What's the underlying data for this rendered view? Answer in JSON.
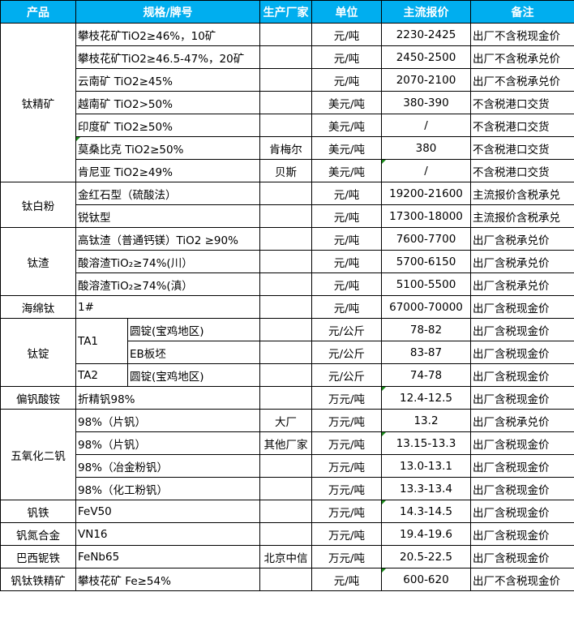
{
  "header": {
    "product": "产品",
    "spec": "规格/牌号",
    "producer": "生产厂家",
    "unit": "单位",
    "price": "主流报价",
    "note": "备注"
  },
  "colors": {
    "header_bg": "#00aeef",
    "header_text": "#ffffff",
    "comment_marker": "#1a8a1a"
  },
  "groups": [
    {
      "product": "钛精矿",
      "rows": [
        {
          "spec": "攀枝花矿TiO2≥46%，10矿",
          "producer": "",
          "unit": "元/吨",
          "price": "2230-2425",
          "note": "出厂不含税现金价"
        },
        {
          "spec": "攀枝花矿TiO2≥46.5-47%，20矿",
          "producer": "",
          "unit": "元/吨",
          "price": "2450-2500",
          "note": "出厂不含税承兑价"
        },
        {
          "spec": "云南矿 TiO2≥45%",
          "producer": "",
          "unit": "元/吨",
          "price": "2070-2100",
          "note": "出厂不含税承兑价"
        },
        {
          "spec": "越南矿 TiO2>50%",
          "producer": "",
          "unit": "美元/吨",
          "price": "380-390",
          "note": "不含税港口交货"
        },
        {
          "spec": "印度矿 TiO2≥50%",
          "producer": "",
          "unit": "美元/吨",
          "price": "/",
          "note": "不含税港口交货"
        },
        {
          "spec": "莫桑比克 TiO2≥50%",
          "producer": "肯梅尔",
          "unit": "美元/吨",
          "price": "380",
          "note": "不含税港口交货"
        },
        {
          "spec": "肯尼亚 TiO2≥49%",
          "producer": "贝斯",
          "unit": "美元/吨",
          "price": "/",
          "note": "不含税港口交货"
        }
      ]
    },
    {
      "product": "钛白粉",
      "rows": [
        {
          "spec": "金红石型（硫酸法）",
          "producer": "",
          "unit": "元/吨",
          "price": "19200-21600",
          "note": "主流报价含税承兑"
        },
        {
          "spec": "锐钛型",
          "producer": "",
          "unit": "元/吨",
          "price": "17300-18000",
          "note": "主流报价含税承兑"
        }
      ]
    },
    {
      "product": "钛渣",
      "rows": [
        {
          "spec": "高钛渣（普通钙镁）TiO2 ≥90%",
          "producer": "",
          "unit": "元/吨",
          "price": "7600-7700",
          "note": "出厂含税承兑价"
        },
        {
          "spec": "酸溶渣TiO₂≥74%(川）",
          "producer": "",
          "unit": "元/吨",
          "price": "5700-6150",
          "note": "出厂含税承兑价"
        },
        {
          "spec": "酸溶渣TiO₂≥74%(滇）",
          "producer": "",
          "unit": "元/吨",
          "price": "5100-5500",
          "note": "出厂含税承兑价"
        }
      ]
    },
    {
      "product": "海绵钛",
      "rows": [
        {
          "spec": "1#",
          "producer": "",
          "unit": "元/吨",
          "price": "67000-70000",
          "note": "出厂含税现金价"
        }
      ]
    },
    {
      "product": "钛锭",
      "rows": [
        {
          "grade": "TA1",
          "spec": "圆锭(宝鸡地区)",
          "producer": "",
          "unit": "元/公斤",
          "price": "78-82",
          "note": "出厂含税现金价"
        },
        {
          "grade": null,
          "spec": "EB板坯",
          "producer": "",
          "unit": "元/公斤",
          "price": "83-87",
          "note": "出厂含税现金价"
        },
        {
          "grade": "TA2",
          "spec": "圆锭(宝鸡地区)",
          "producer": "",
          "unit": "元/公斤",
          "price": "74-78",
          "note": "出厂含税现金价"
        }
      ]
    },
    {
      "product": "偏钒酸铵",
      "rows": [
        {
          "spec": "折精钒98%",
          "producer": "",
          "unit": "万元/吨",
          "price": "12.4-12.5",
          "note": "出厂含税现金价"
        }
      ]
    },
    {
      "product": "五氧化二钒",
      "rows": [
        {
          "spec": "98%（片钒）",
          "producer": "大厂",
          "unit": "万元/吨",
          "price": "13.2",
          "note": "出厂含税承兑价"
        },
        {
          "spec": "98%（片钒）",
          "producer": "其他厂家",
          "unit": "万元/吨",
          "price": "13.15-13.3",
          "note": "出厂含税现金价"
        },
        {
          "spec": "98%（冶金粉钒）",
          "producer": "",
          "unit": "万元/吨",
          "price": "13.0-13.1",
          "note": "出厂含税现金价"
        },
        {
          "spec": "98%（化工粉钒）",
          "producer": "",
          "unit": "万元/吨",
          "price": "13.3-13.4",
          "note": "出厂含税现金价"
        }
      ]
    },
    {
      "product": "钒铁",
      "rows": [
        {
          "spec": "FeV50",
          "producer": "",
          "unit": "万元/吨",
          "price": "14.3-14.5",
          "note": "出厂含税现金价"
        }
      ]
    },
    {
      "product": "钒氮合金",
      "rows": [
        {
          "spec": "VN16",
          "producer": "",
          "unit": "万元/吨",
          "price": "19.4-19.6",
          "note": "出厂含税现金价"
        }
      ]
    },
    {
      "product": "巴西铌铁",
      "rows": [
        {
          "spec": "FeNb65",
          "producer": "北京中信",
          "unit": "万元/吨",
          "price": "20.5-22.5",
          "note": "出厂含税现金价"
        }
      ]
    },
    {
      "product": "钒钛铁精矿",
      "rows": [
        {
          "spec": "攀枝花矿 Fe≥54%",
          "producer": "",
          "unit": "元/吨",
          "price": "600-620",
          "note": "出厂不含税现金价"
        }
      ]
    }
  ]
}
